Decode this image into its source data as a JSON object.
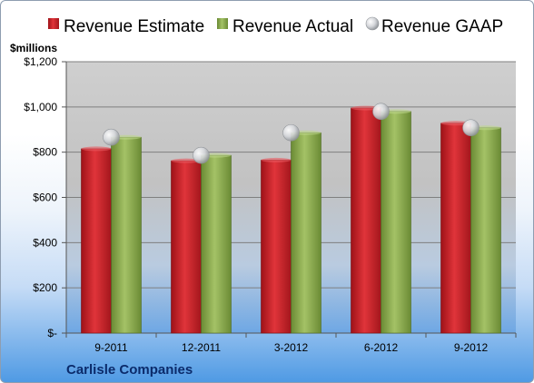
{
  "chart_data": {
    "type": "bar",
    "categories": [
      "9-2011",
      "12-2011",
      "3-2012",
      "6-2012",
      "9-2012"
    ],
    "series": [
      {
        "name": "Revenue Estimate",
        "kind": "bar",
        "color": "#d0262e",
        "values": [
          815,
          762,
          765,
          995,
          928
        ]
      },
      {
        "name": "Revenue Actual",
        "kind": "bar",
        "color": "#8aa850",
        "values": [
          866,
          786,
          886,
          980,
          908
        ]
      },
      {
        "name": "Revenue GAAP",
        "kind": "marker",
        "color": "#c8cbd0",
        "values": [
          866,
          786,
          886,
          980,
          908
        ]
      }
    ],
    "ylabel": "$millions",
    "ylim": [
      0,
      1200
    ],
    "yticks": [
      0,
      200,
      400,
      600,
      800,
      1000,
      1200
    ],
    "ytick_labels": [
      "$-",
      "$200",
      "$400",
      "$600",
      "$800",
      "$1,000",
      "$1,200"
    ],
    "grid": true,
    "legend_position": "top"
  },
  "company": "Carlisle Companies"
}
